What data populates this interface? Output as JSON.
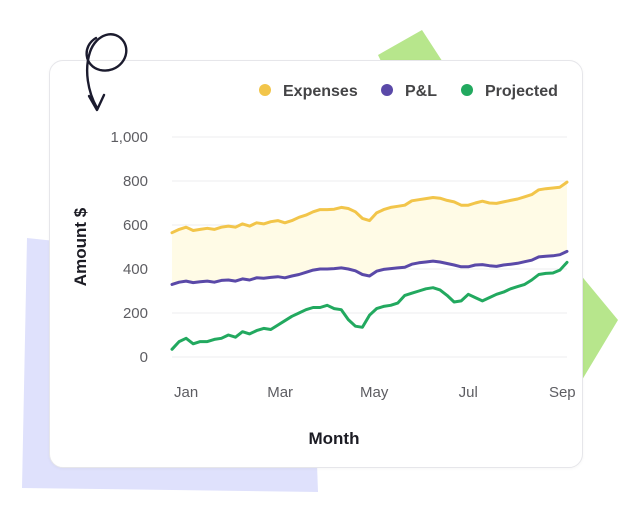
{
  "colors": {
    "expenses": "#f2c54a",
    "pl": "#5a49a8",
    "projected": "#22a95f",
    "fill": "#fffbe6",
    "grid": "#ececef",
    "lavender": "#dfe1fc",
    "lime": "#b7e68c",
    "arrow": "#1b1b2e"
  },
  "chart_data": {
    "type": "line",
    "title": "",
    "xlabel": "Month",
    "ylabel": "Amount $",
    "ylim": [
      0,
      1000
    ],
    "yticks": [
      0,
      200,
      400,
      600,
      800,
      1000
    ],
    "ytick_labels": [
      "0",
      "200",
      "400",
      "600",
      "800",
      "1,000"
    ],
    "xlim": [
      0,
      8.4
    ],
    "xticks": [
      0.3,
      2.3,
      4.3,
      6.3,
      8.3
    ],
    "xtick_labels": [
      "Jan",
      "Mar",
      "May",
      "Jul",
      "Sep"
    ],
    "legend_position": "top-right",
    "band_between": [
      "P&L",
      "Expenses"
    ],
    "series": [
      {
        "name": "Expenses",
        "x": [
          0,
          0.15,
          0.3,
          0.45,
          0.6,
          0.75,
          0.9,
          1.05,
          1.2,
          1.35,
          1.5,
          1.65,
          1.8,
          1.95,
          2.1,
          2.25,
          2.4,
          2.55,
          2.7,
          2.85,
          3.0,
          3.15,
          3.3,
          3.45,
          3.6,
          3.75,
          3.9,
          4.05,
          4.2,
          4.35,
          4.5,
          4.65,
          4.8,
          4.95,
          5.1,
          5.25,
          5.4,
          5.55,
          5.7,
          5.85,
          6.0,
          6.15,
          6.3,
          6.45,
          6.6,
          6.75,
          6.9,
          7.05,
          7.2,
          7.35,
          7.5,
          7.65,
          7.8,
          7.95,
          8.1,
          8.25,
          8.4
        ],
        "values": [
          565,
          580,
          590,
          575,
          580,
          585,
          580,
          590,
          595,
          590,
          605,
          595,
          610,
          605,
          615,
          620,
          610,
          620,
          635,
          645,
          660,
          670,
          670,
          672,
          680,
          675,
          660,
          630,
          620,
          655,
          670,
          680,
          685,
          690,
          710,
          715,
          720,
          725,
          722,
          712,
          705,
          690,
          690,
          700,
          708,
          700,
          698,
          705,
          712,
          718,
          728,
          738,
          760,
          765,
          768,
          772,
          795
        ]
      },
      {
        "name": "P&L",
        "x": [
          0,
          0.15,
          0.3,
          0.45,
          0.6,
          0.75,
          0.9,
          1.05,
          1.2,
          1.35,
          1.5,
          1.65,
          1.8,
          1.95,
          2.1,
          2.25,
          2.4,
          2.55,
          2.7,
          2.85,
          3.0,
          3.15,
          3.3,
          3.45,
          3.6,
          3.75,
          3.9,
          4.05,
          4.2,
          4.35,
          4.5,
          4.65,
          4.8,
          4.95,
          5.1,
          5.25,
          5.4,
          5.55,
          5.7,
          5.85,
          6.0,
          6.15,
          6.3,
          6.45,
          6.6,
          6.75,
          6.9,
          7.05,
          7.2,
          7.35,
          7.5,
          7.65,
          7.8,
          7.95,
          8.1,
          8.25,
          8.4
        ],
        "values": [
          330,
          340,
          345,
          338,
          342,
          345,
          340,
          348,
          350,
          345,
          355,
          350,
          360,
          358,
          362,
          365,
          360,
          368,
          375,
          385,
          395,
          400,
          400,
          402,
          405,
          400,
          392,
          375,
          368,
          390,
          398,
          402,
          405,
          408,
          422,
          428,
          432,
          436,
          432,
          425,
          418,
          410,
          410,
          418,
          420,
          415,
          412,
          418,
          422,
          426,
          433,
          440,
          455,
          458,
          460,
          465,
          480
        ]
      },
      {
        "name": "Projected",
        "x": [
          0,
          0.15,
          0.3,
          0.45,
          0.6,
          0.75,
          0.9,
          1.05,
          1.2,
          1.35,
          1.5,
          1.65,
          1.8,
          1.95,
          2.1,
          2.25,
          2.4,
          2.55,
          2.7,
          2.85,
          3.0,
          3.15,
          3.3,
          3.45,
          3.6,
          3.75,
          3.9,
          4.05,
          4.2,
          4.35,
          4.5,
          4.65,
          4.8,
          4.95,
          5.1,
          5.25,
          5.4,
          5.55,
          5.7,
          5.85,
          6.0,
          6.15,
          6.3,
          6.45,
          6.6,
          6.75,
          6.9,
          7.05,
          7.2,
          7.35,
          7.5,
          7.65,
          7.8,
          7.95,
          8.1,
          8.25,
          8.4
        ],
        "values": [
          35,
          70,
          85,
          60,
          70,
          70,
          80,
          85,
          100,
          90,
          115,
          105,
          120,
          130,
          125,
          145,
          165,
          185,
          200,
          215,
          225,
          225,
          235,
          220,
          215,
          170,
          140,
          135,
          190,
          220,
          230,
          235,
          245,
          280,
          290,
          300,
          310,
          315,
          305,
          280,
          250,
          255,
          285,
          270,
          255,
          270,
          285,
          295,
          310,
          320,
          330,
          350,
          375,
          380,
          382,
          395,
          430
        ]
      }
    ]
  }
}
